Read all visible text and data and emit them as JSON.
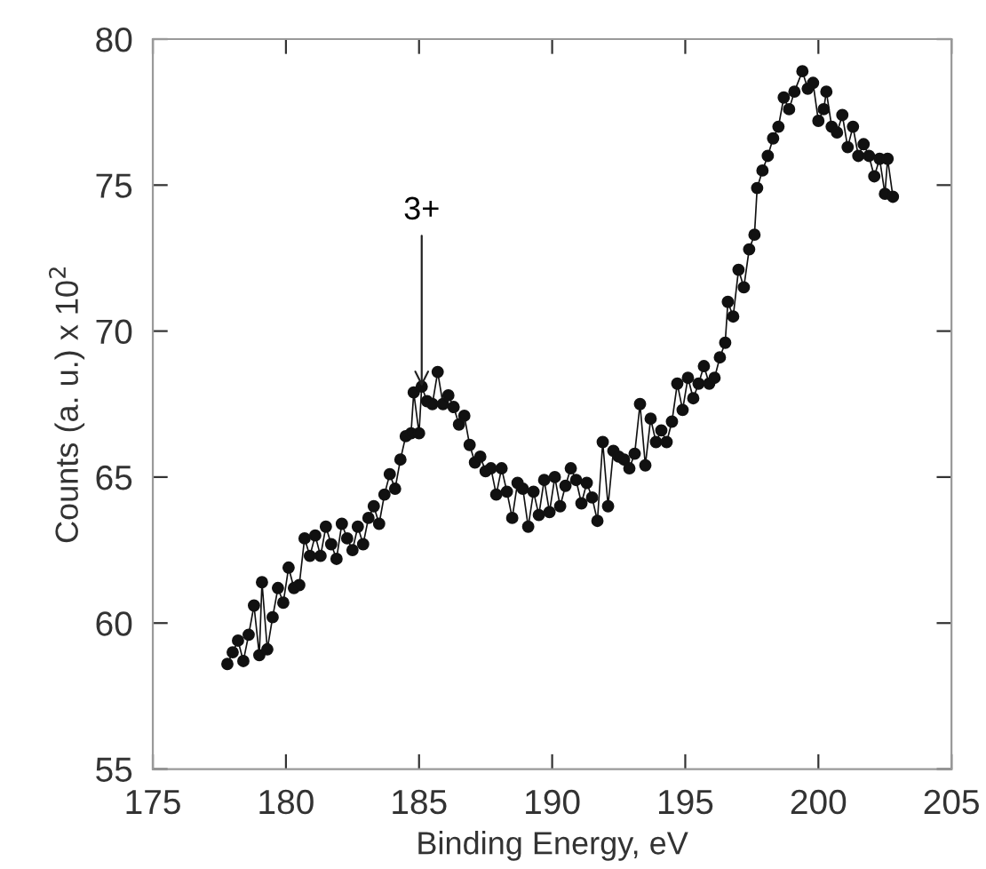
{
  "chart_data": {
    "type": "line",
    "xlabel": "Binding Energy, eV",
    "ylabel": "Counts (a. u.) x 10$^{2}$",
    "xlim": [
      175,
      205
    ],
    "xticks": [
      175,
      180,
      185,
      190,
      195,
      200,
      205
    ],
    "ylim": [
      55,
      80
    ],
    "yticks": [
      55,
      60,
      65,
      70,
      75,
      80
    ],
    "grid": false,
    "marker": "circle",
    "line_style": "solid",
    "annotations": [
      {
        "text": "3+",
        "x": 185.1,
        "y": 68.1
      }
    ],
    "series": [
      {
        "color": "#111111",
        "x": [
          177.8,
          178.0,
          178.2,
          178.4,
          178.6,
          178.8,
          179.0,
          179.1,
          179.3,
          179.5,
          179.7,
          179.9,
          180.1,
          180.3,
          180.5,
          180.7,
          180.9,
          181.1,
          181.3,
          181.5,
          181.7,
          181.9,
          182.1,
          182.3,
          182.5,
          182.7,
          182.9,
          183.1,
          183.3,
          183.5,
          183.7,
          183.9,
          184.1,
          184.3,
          184.5,
          184.7,
          184.8,
          185.0,
          185.1,
          185.3,
          185.5,
          185.7,
          185.9,
          186.1,
          186.3,
          186.5,
          186.7,
          186.9,
          187.1,
          187.3,
          187.5,
          187.7,
          187.9,
          188.1,
          188.3,
          188.5,
          188.7,
          188.9,
          189.1,
          189.3,
          189.5,
          189.7,
          189.9,
          190.1,
          190.3,
          190.5,
          190.7,
          190.9,
          191.1,
          191.3,
          191.5,
          191.7,
          191.9,
          192.1,
          192.3,
          192.5,
          192.7,
          192.9,
          193.1,
          193.3,
          193.5,
          193.7,
          193.9,
          194.1,
          194.3,
          194.5,
          194.7,
          194.9,
          195.1,
          195.3,
          195.5,
          195.7,
          195.9,
          196.1,
          196.3,
          196.5,
          196.6,
          196.8,
          197.0,
          197.2,
          197.4,
          197.6,
          197.7,
          197.9,
          198.1,
          198.3,
          198.5,
          198.7,
          198.9,
          199.1,
          199.4,
          199.6,
          199.8,
          200.0,
          200.2,
          200.3,
          200.5,
          200.7,
          200.9,
          201.1,
          201.3,
          201.5,
          201.7,
          201.9,
          202.1,
          202.3,
          202.5,
          202.6,
          202.8
        ],
        "values": [
          58.6,
          59.0,
          59.4,
          58.7,
          59.6,
          60.6,
          58.9,
          61.4,
          59.1,
          60.2,
          61.2,
          60.7,
          61.9,
          61.2,
          61.3,
          62.9,
          62.3,
          63.0,
          62.3,
          63.3,
          62.7,
          62.2,
          63.4,
          62.9,
          62.5,
          63.3,
          62.7,
          63.6,
          64.0,
          63.4,
          64.4,
          65.1,
          64.6,
          65.6,
          66.4,
          66.5,
          67.9,
          66.5,
          68.1,
          67.6,
          67.5,
          68.6,
          67.5,
          67.8,
          67.4,
          66.8,
          67.1,
          66.1,
          65.5,
          65.7,
          65.2,
          65.3,
          64.4,
          65.3,
          64.5,
          63.6,
          64.8,
          64.6,
          63.3,
          64.5,
          63.7,
          64.9,
          63.8,
          65.0,
          64.0,
          64.7,
          65.3,
          64.9,
          64.1,
          64.8,
          64.3,
          63.5,
          66.2,
          64.0,
          65.9,
          65.7,
          65.6,
          65.3,
          65.8,
          67.5,
          65.4,
          67.0,
          66.2,
          66.6,
          66.2,
          66.9,
          68.2,
          67.3,
          68.4,
          67.7,
          68.2,
          68.8,
          68.2,
          68.4,
          69.1,
          69.6,
          71.0,
          70.5,
          72.1,
          71.5,
          72.8,
          73.3,
          74.9,
          75.5,
          76.0,
          76.6,
          77.0,
          78.0,
          77.6,
          78.2,
          78.9,
          78.3,
          78.5,
          77.2,
          77.6,
          78.2,
          77.0,
          76.8,
          77.4,
          76.3,
          77.0,
          76.0,
          76.4,
          76.0,
          75.3,
          75.9,
          74.7,
          75.9,
          74.6
        ]
      }
    ]
  }
}
